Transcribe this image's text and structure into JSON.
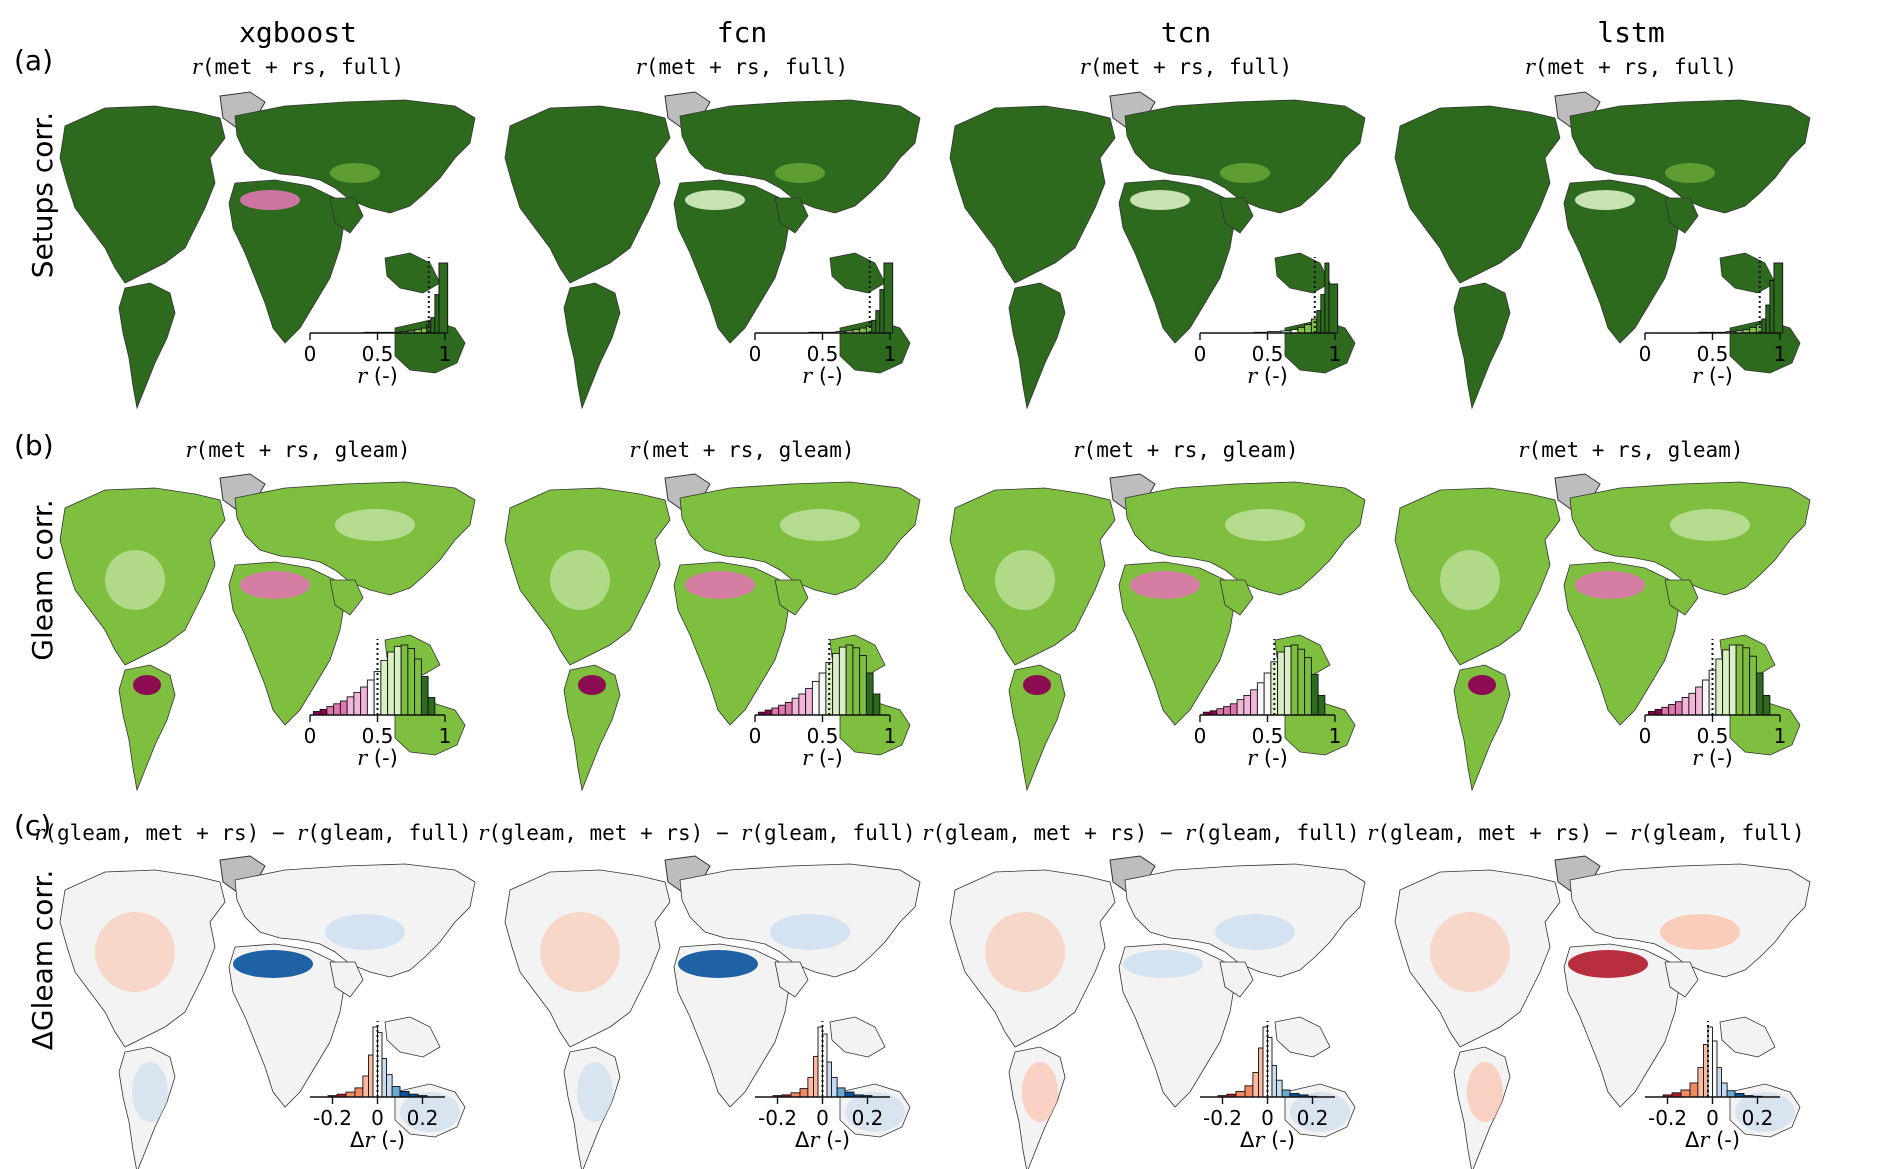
{
  "figure": {
    "models": [
      "xgboost",
      "fcn",
      "tcn",
      "lstm"
    ],
    "row_letters": [
      "(a)",
      "(b)",
      "(c)"
    ],
    "row_labels": [
      "Setups corr.",
      "Gleam corr.",
      "ΔGleam corr."
    ],
    "subtitles": [
      [
        "r",
        "(met + rs, full)"
      ],
      [
        "r",
        "(met + rs, gleam)"
      ],
      [
        "r",
        "(gleam, met + rs) − ",
        "r",
        "(gleam, full)"
      ]
    ],
    "xaxis_labels": [
      [
        "r",
        " (-)"
      ],
      [
        "r",
        " (-)"
      ],
      [
        "Δ",
        "r",
        " (-)"
      ]
    ],
    "tick_labels": [
      [
        "0",
        "0.5",
        "1"
      ],
      [
        "0",
        "0.5",
        "1"
      ],
      [
        "-0.2",
        "0",
        "0.2"
      ]
    ]
  },
  "colors": {
    "green_dark": "#2d6a1e",
    "green_mid": "#7fbf3f",
    "green_light": "#d9efc4",
    "pink_dark": "#8e0152",
    "pink_mid": "#de77ae",
    "blue_dark": "#08519c",
    "blue_light": "#c6dbef",
    "red_dark": "#b2182b",
    "red_light": "#fcbba1",
    "greenland_gray": "#bdbdbd"
  },
  "chart_data": [
    {
      "type": "bar",
      "title": "xgboost",
      "subtitle": "r(met + rs, full)",
      "xlabel": "r (-)",
      "xlim": [
        0,
        1
      ],
      "bins_x": [
        0.45,
        0.55,
        0.65,
        0.7,
        0.75,
        0.8,
        0.85,
        0.88,
        0.91,
        0.94,
        0.97
      ],
      "values": [
        0.01,
        0.01,
        0.01,
        0.02,
        0.03,
        0.05,
        0.07,
        0.12,
        0.22,
        0.55,
        1.0
      ],
      "median": 0.88
    },
    {
      "type": "bar",
      "title": "fcn",
      "subtitle": "r(met + rs, full)",
      "xlabel": "r (-)",
      "xlim": [
        0,
        1
      ],
      "bins_x": [
        0.45,
        0.55,
        0.65,
        0.7,
        0.75,
        0.8,
        0.85,
        0.88,
        0.91,
        0.94,
        0.97
      ],
      "values": [
        0.01,
        0.01,
        0.02,
        0.03,
        0.05,
        0.07,
        0.1,
        0.18,
        0.32,
        0.62,
        1.0
      ],
      "median": 0.85
    },
    {
      "type": "bar",
      "title": "tcn",
      "subtitle": "r(met + rs, full)",
      "xlabel": "r (-)",
      "xlim": [
        0,
        1
      ],
      "bins_x": [
        0.45,
        0.55,
        0.65,
        0.7,
        0.75,
        0.8,
        0.85,
        0.88,
        0.91,
        0.94,
        0.97
      ],
      "values": [
        0.01,
        0.02,
        0.03,
        0.05,
        0.08,
        0.12,
        0.2,
        0.32,
        0.55,
        1.0,
        0.7
      ],
      "median": 0.85
    },
    {
      "type": "bar",
      "title": "lstm",
      "subtitle": "r(met + rs, full)",
      "xlabel": "r (-)",
      "xlim": [
        0,
        1
      ],
      "bins_x": [
        0.45,
        0.55,
        0.65,
        0.7,
        0.75,
        0.8,
        0.85,
        0.88,
        0.91,
        0.94,
        0.97
      ],
      "values": [
        0.01,
        0.01,
        0.02,
        0.03,
        0.05,
        0.08,
        0.12,
        0.2,
        0.4,
        0.75,
        1.0
      ],
      "median": 0.85
    },
    {
      "type": "bar",
      "title": "",
      "subtitle": "r(met + rs, gleam)",
      "xlabel": "r (-)",
      "xlim": [
        0,
        1
      ],
      "bins_x": [
        0.05,
        0.1,
        0.15,
        0.2,
        0.25,
        0.3,
        0.35,
        0.4,
        0.45,
        0.5,
        0.55,
        0.6,
        0.65,
        0.7,
        0.75,
        0.8,
        0.85,
        0.9
      ],
      "values": [
        0.05,
        0.08,
        0.12,
        0.16,
        0.2,
        0.26,
        0.32,
        0.4,
        0.5,
        0.62,
        0.78,
        0.9,
        0.98,
        1.0,
        0.95,
        0.8,
        0.55,
        0.25
      ],
      "median": 0.5
    },
    {
      "type": "bar",
      "title": "",
      "subtitle": "r(met + rs, gleam)",
      "xlabel": "r (-)",
      "xlim": [
        0,
        1
      ],
      "bins_x": [
        0.05,
        0.1,
        0.15,
        0.2,
        0.25,
        0.3,
        0.35,
        0.4,
        0.45,
        0.5,
        0.55,
        0.6,
        0.65,
        0.7,
        0.75,
        0.8,
        0.85,
        0.9
      ],
      "values": [
        0.04,
        0.07,
        0.1,
        0.14,
        0.18,
        0.24,
        0.3,
        0.38,
        0.48,
        0.6,
        0.75,
        0.88,
        0.97,
        1.0,
        0.96,
        0.85,
        0.6,
        0.3
      ],
      "median": 0.55
    },
    {
      "type": "bar",
      "title": "",
      "subtitle": "r(met + rs, gleam)",
      "xlabel": "r (-)",
      "xlim": [
        0,
        1
      ],
      "bins_x": [
        0.05,
        0.1,
        0.15,
        0.2,
        0.25,
        0.3,
        0.35,
        0.4,
        0.45,
        0.5,
        0.55,
        0.6,
        0.65,
        0.7,
        0.75,
        0.8,
        0.85,
        0.9
      ],
      "values": [
        0.04,
        0.06,
        0.09,
        0.12,
        0.16,
        0.22,
        0.28,
        0.36,
        0.46,
        0.6,
        0.76,
        0.9,
        0.98,
        1.0,
        0.94,
        0.82,
        0.58,
        0.28
      ],
      "median": 0.55
    },
    {
      "type": "bar",
      "title": "",
      "subtitle": "r(met + rs, gleam)",
      "xlabel": "r (-)",
      "xlim": [
        0,
        1
      ],
      "bins_x": [
        0.05,
        0.1,
        0.15,
        0.2,
        0.25,
        0.3,
        0.35,
        0.4,
        0.45,
        0.5,
        0.55,
        0.6,
        0.65,
        0.7,
        0.75,
        0.8,
        0.85,
        0.9
      ],
      "values": [
        0.05,
        0.08,
        0.11,
        0.15,
        0.19,
        0.25,
        0.31,
        0.4,
        0.5,
        0.64,
        0.8,
        0.93,
        1.0,
        1.0,
        0.96,
        0.84,
        0.6,
        0.28
      ],
      "median": 0.5
    },
    {
      "type": "bar",
      "title": "",
      "subtitle": "r(gleam, met + rs) − r(gleam, full)",
      "xlabel": "Δr (-)",
      "xlim": [
        -0.3,
        0.3
      ],
      "bins_x": [
        -0.2,
        -0.16,
        -0.12,
        -0.08,
        -0.05,
        -0.03,
        -0.01,
        0.01,
        0.03,
        0.05,
        0.08,
        0.12,
        0.16,
        0.2
      ],
      "values": [
        0.02,
        0.04,
        0.07,
        0.13,
        0.3,
        0.6,
        1.0,
        0.92,
        0.55,
        0.32,
        0.15,
        0.08,
        0.04,
        0.02
      ],
      "median": 0.0
    },
    {
      "type": "bar",
      "title": "",
      "subtitle": "r(gleam, met + rs) − r(gleam, full)",
      "xlabel": "Δr (-)",
      "xlim": [
        -0.3,
        0.3
      ],
      "bins_x": [
        -0.2,
        -0.16,
        -0.12,
        -0.08,
        -0.05,
        -0.03,
        -0.01,
        0.01,
        0.03,
        0.05,
        0.08,
        0.12,
        0.16,
        0.2
      ],
      "values": [
        0.02,
        0.03,
        0.06,
        0.12,
        0.28,
        0.58,
        1.0,
        0.9,
        0.5,
        0.28,
        0.13,
        0.07,
        0.03,
        0.02
      ],
      "median": 0.0
    },
    {
      "type": "bar",
      "title": "",
      "subtitle": "r(gleam, met + rs) − r(gleam, full)",
      "xlabel": "Δr (-)",
      "xlim": [
        -0.3,
        0.3
      ],
      "bins_x": [
        -0.2,
        -0.16,
        -0.12,
        -0.08,
        -0.05,
        -0.03,
        -0.01,
        0.01,
        0.03,
        0.05,
        0.08,
        0.12,
        0.16,
        0.2
      ],
      "values": [
        0.02,
        0.04,
        0.08,
        0.16,
        0.35,
        0.7,
        1.0,
        0.85,
        0.45,
        0.24,
        0.1,
        0.05,
        0.03,
        0.01
      ],
      "median": 0.0
    },
    {
      "type": "bar",
      "title": "",
      "subtitle": "r(gleam, met + rs) − r(gleam, full)",
      "xlabel": "Δr (-)",
      "xlim": [
        -0.3,
        0.3
      ],
      "bins_x": [
        -0.2,
        -0.16,
        -0.12,
        -0.08,
        -0.05,
        -0.03,
        -0.01,
        0.01,
        0.03,
        0.05,
        0.08,
        0.12,
        0.16,
        0.2
      ],
      "values": [
        0.03,
        0.06,
        0.1,
        0.2,
        0.42,
        0.75,
        1.0,
        0.8,
        0.42,
        0.2,
        0.09,
        0.05,
        0.02,
        0.01
      ],
      "median": -0.02
    }
  ]
}
